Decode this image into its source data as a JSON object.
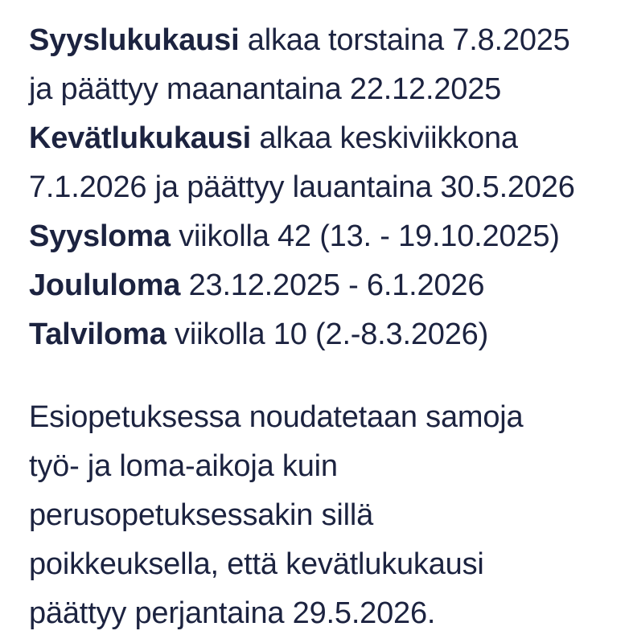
{
  "page": {
    "background": "#ffffff",
    "text_color": "#1c2340",
    "language": "Finnish"
  },
  "schedule": {
    "lines": [
      {
        "bold": "Syyslukukausi",
        "text": " alkaa torstaina 7.8.2025"
      },
      {
        "bold": "",
        "text": "ja päättyy maanantaina 22.12.2025"
      },
      {
        "bold": "Kevätlukukausi",
        "text": " alkaa keskiviikkona"
      },
      {
        "bold": "",
        "text": "7.1.2026 ja päättyy lauantaina 30.5.2026"
      },
      {
        "bold": "Syysloma",
        "text": " viikolla 42 (13. - 19.10.2025)"
      },
      {
        "bold": "Joululoma",
        "text": " 23.12.2025 - 6.1.2026"
      },
      {
        "bold": "Talviloma",
        "text": " viikolla 10 (2.-8.3.2026)"
      }
    ]
  },
  "note": {
    "lines": [
      "Esiopetuksessa noudatetaan samoja",
      "työ- ja loma-aikoja kuin",
      "perusopetuksessakin sillä",
      "poikkeuksella, että kevätlukukausi",
      "päättyy perjantaina 29.5.2026."
    ]
  }
}
